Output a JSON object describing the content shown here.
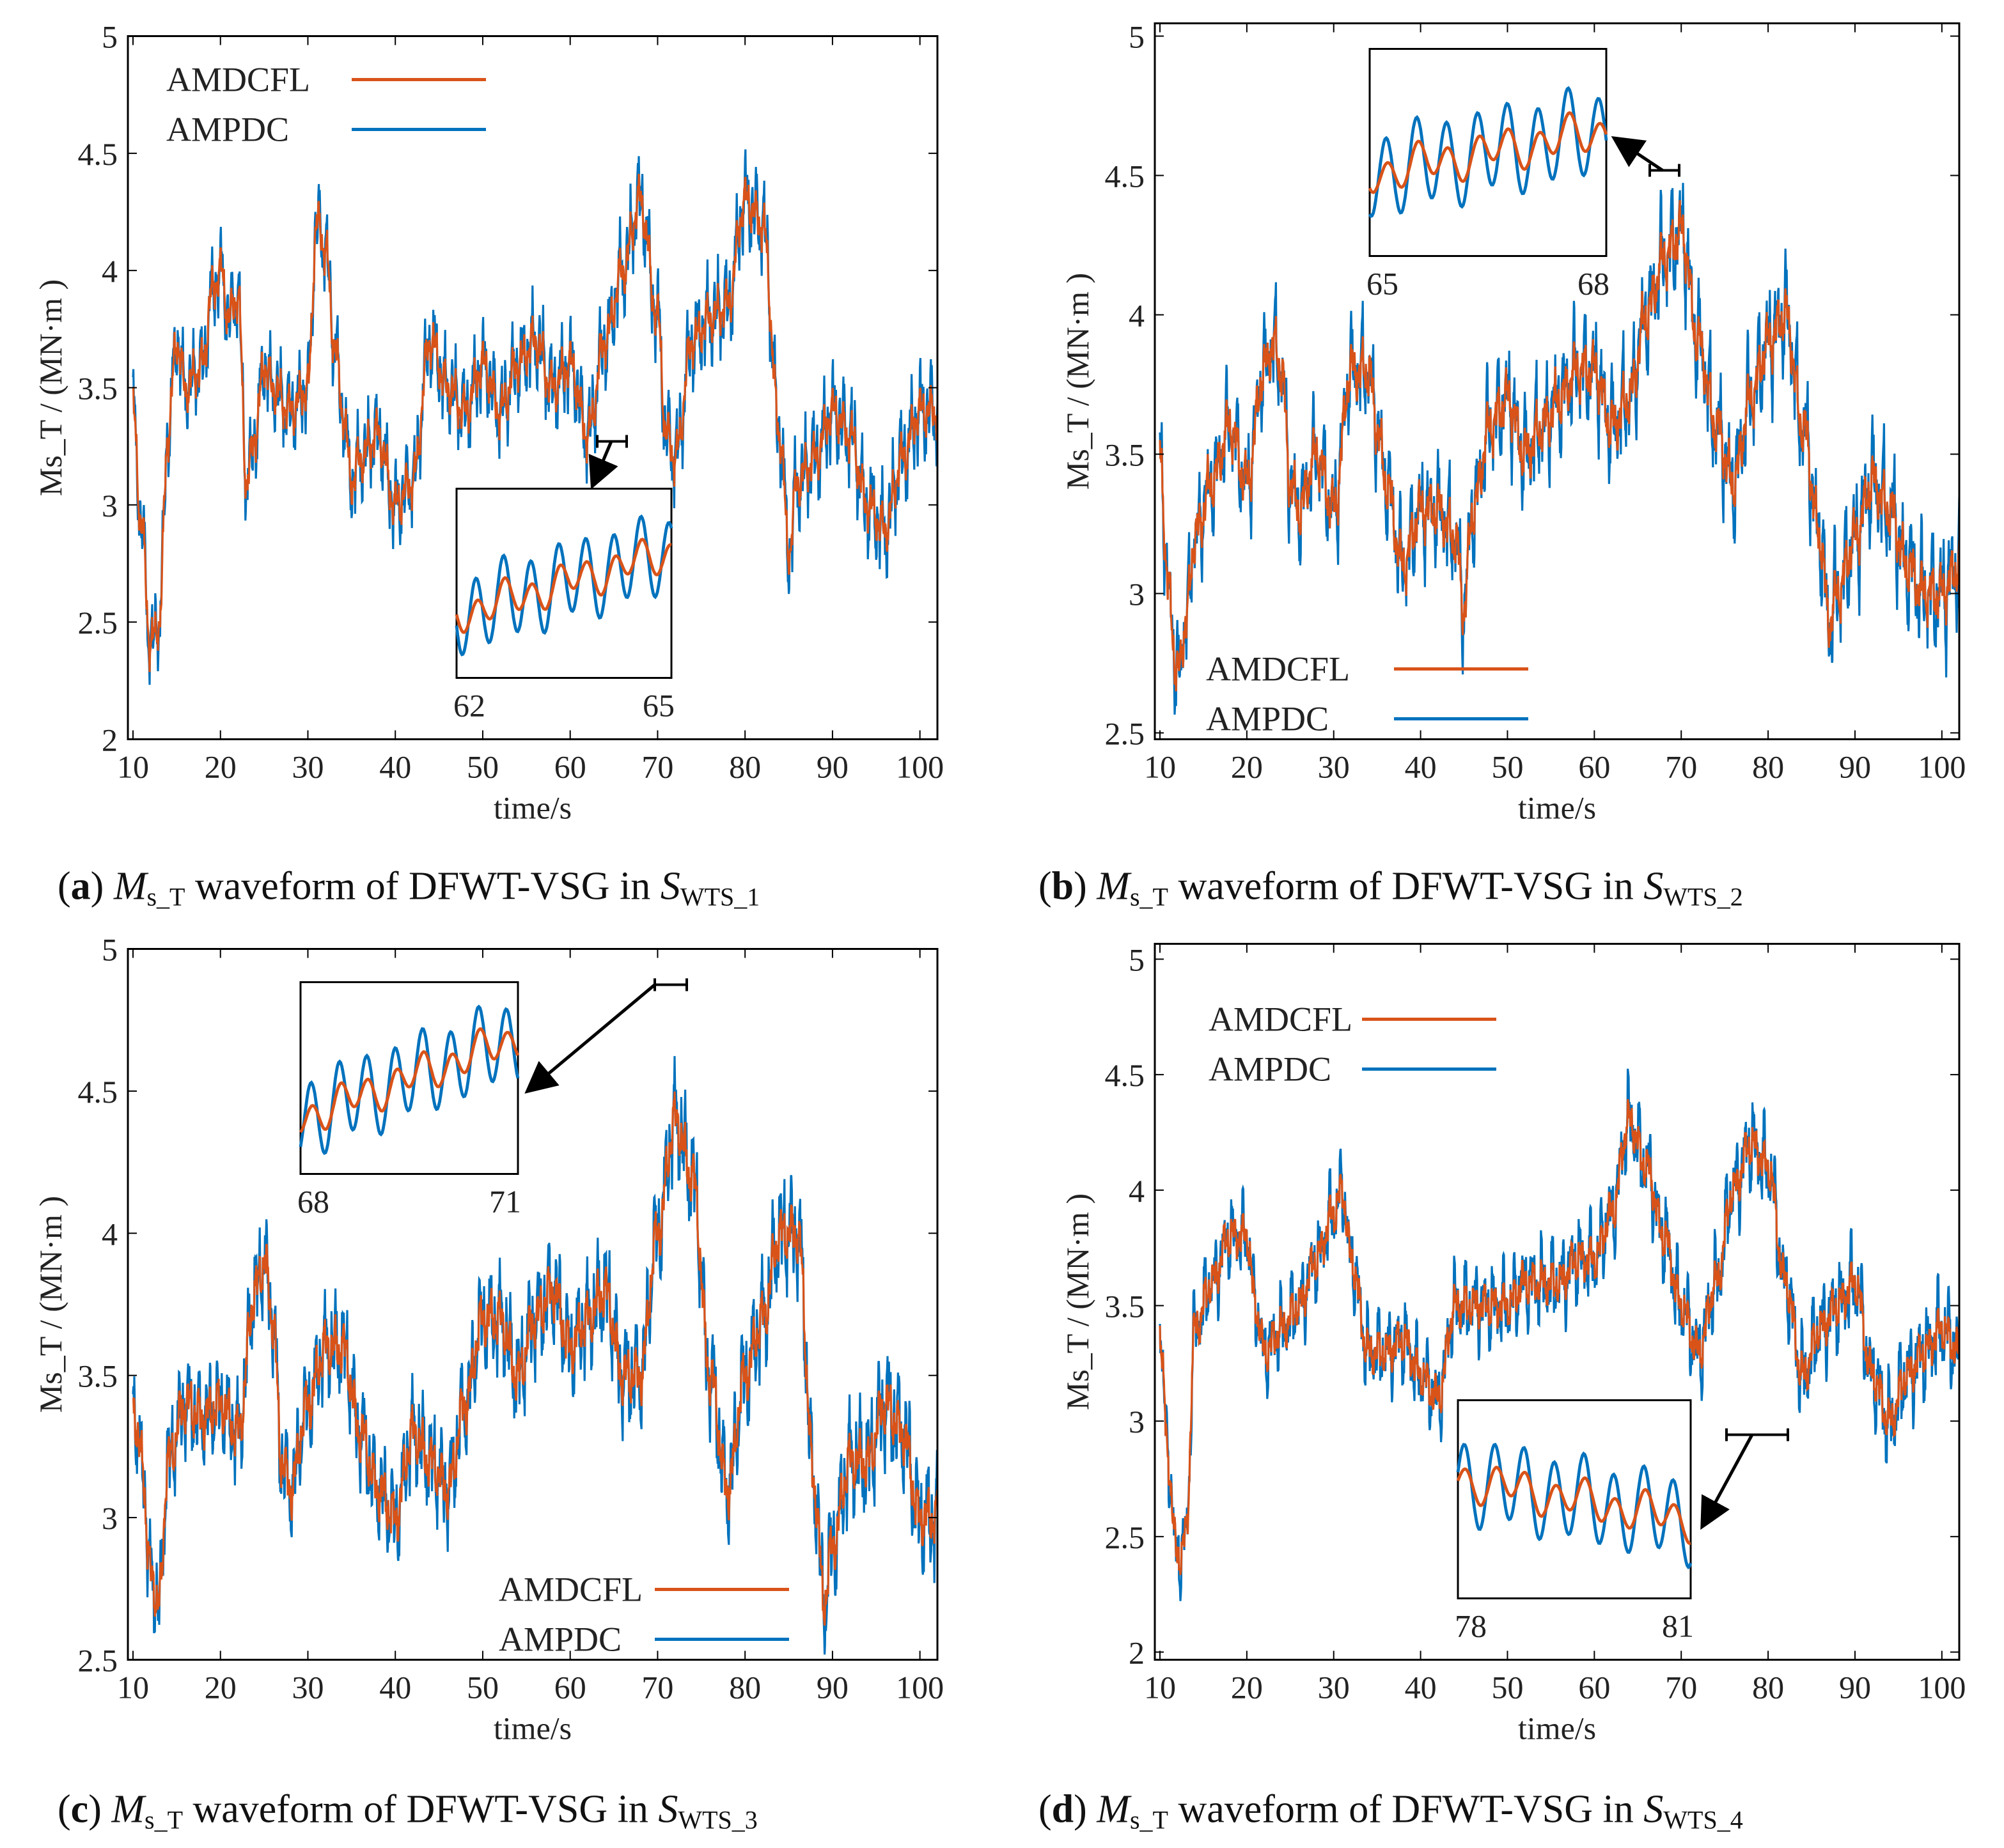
{
  "colors": {
    "amdcfl": "#d95319",
    "ampdc": "#0072bd",
    "axis": "#000000"
  },
  "chart_data": [
    {
      "type": "line",
      "panel": "a",
      "caption": {
        "tag": "a",
        "sym": "M",
        "sub": "s_T",
        "text": " waveform of DFWT-VSG in ",
        "sym2": "S",
        "sub2": "WTS_1"
      },
      "xlabel": "time/s",
      "ylabel": "Ms_T / (MN·m )",
      "xlim": [
        10,
        102
      ],
      "ylim": [
        2,
        5
      ],
      "xticks": [
        10,
        20,
        30,
        40,
        50,
        60,
        70,
        80,
        90,
        100
      ],
      "yticks": [
        2,
        2.5,
        3,
        3.5,
        4,
        4.5,
        5
      ],
      "ytick_labels": [
        "2",
        "2.5",
        "3",
        "3.5",
        "4",
        "4.5",
        "5"
      ],
      "legend": [
        "AMDCFL",
        "AMPDC"
      ],
      "legend_position": "top-left",
      "inset": {
        "xlim": [
          62,
          65
        ],
        "xtick_labels": [
          "62",
          "65"
        ]
      },
      "series_points": [
        [
          10,
          3.4
        ],
        [
          11,
          2.9
        ],
        [
          12,
          2.4
        ],
        [
          13,
          2.5
        ],
        [
          14,
          3.3
        ],
        [
          15,
          3.7
        ],
        [
          16,
          3.5
        ],
        [
          18,
          3.6
        ],
        [
          19,
          3.9
        ],
        [
          20,
          4.0
        ],
        [
          21,
          3.8
        ],
        [
          22,
          3.9
        ],
        [
          23,
          3.1
        ],
        [
          24,
          3.3
        ],
        [
          25,
          3.6
        ],
        [
          26,
          3.5
        ],
        [
          28,
          3.4
        ],
        [
          30,
          3.5
        ],
        [
          31,
          4.2
        ],
        [
          32,
          4.1
        ],
        [
          33,
          3.7
        ],
        [
          34,
          3.4
        ],
        [
          35,
          3.1
        ],
        [
          36,
          3.2
        ],
        [
          38,
          3.3
        ],
        [
          40,
          3.0
        ],
        [
          42,
          3.1
        ],
        [
          44,
          3.7
        ],
        [
          46,
          3.5
        ],
        [
          48,
          3.4
        ],
        [
          50,
          3.6
        ],
        [
          52,
          3.4
        ],
        [
          54,
          3.6
        ],
        [
          56,
          3.7
        ],
        [
          58,
          3.5
        ],
        [
          60,
          3.6
        ],
        [
          62,
          3.3
        ],
        [
          64,
          3.7
        ],
        [
          66,
          4.0
        ],
        [
          68,
          4.3
        ],
        [
          70,
          3.8
        ],
        [
          71,
          3.3
        ],
        [
          72,
          3.2
        ],
        [
          74,
          3.7
        ],
        [
          76,
          3.8
        ],
        [
          78,
          3.85
        ],
        [
          80,
          4.3
        ],
        [
          82,
          4.2
        ],
        [
          84,
          3.3
        ],
        [
          85,
          2.8
        ],
        [
          86,
          3.1
        ],
        [
          88,
          3.2
        ],
        [
          90,
          3.4
        ],
        [
          92,
          3.3
        ],
        [
          94,
          3.0
        ],
        [
          96,
          2.9
        ],
        [
          98,
          3.2
        ],
        [
          100,
          3.4
        ],
        [
          102,
          3.4
        ]
      ]
    },
    {
      "type": "line",
      "panel": "b",
      "caption": {
        "tag": "b",
        "sym": "M",
        "sub": "s_T",
        "text": " waveform of DFWT-VSG in ",
        "sym2": "S",
        "sub2": "WTS_2"
      },
      "xlabel": "time/s",
      "ylabel": "Ms_T / (MN·m )",
      "xlim": [
        10,
        102
      ],
      "ylim": [
        2.5,
        5
      ],
      "xticks": [
        10,
        20,
        30,
        40,
        50,
        60,
        70,
        80,
        90,
        100
      ],
      "yticks": [
        2.5,
        3,
        3.5,
        4,
        4.5,
        5
      ],
      "ytick_labels": [
        "2.5",
        "3",
        "3.5",
        "4",
        "4.5",
        "5"
      ],
      "legend": [
        "AMDCFL",
        "AMPDC"
      ],
      "legend_position": "bottom-left",
      "inset": {
        "xlim": [
          65,
          68
        ],
        "xtick_labels": [
          "65",
          "68"
        ]
      },
      "series_points": [
        [
          10,
          3.5
        ],
        [
          11,
          3.0
        ],
        [
          12,
          2.7
        ],
        [
          13,
          2.9
        ],
        [
          14,
          3.2
        ],
        [
          16,
          3.4
        ],
        [
          18,
          3.6
        ],
        [
          20,
          3.4
        ],
        [
          22,
          3.8
        ],
        [
          23,
          3.9
        ],
        [
          24,
          3.8
        ],
        [
          25,
          3.4
        ],
        [
          26,
          3.3
        ],
        [
          28,
          3.5
        ],
        [
          30,
          3.3
        ],
        [
          32,
          3.8
        ],
        [
          34,
          3.8
        ],
        [
          35,
          3.6
        ],
        [
          36,
          3.4
        ],
        [
          38,
          3.1
        ],
        [
          40,
          3.3
        ],
        [
          42,
          3.3
        ],
        [
          44,
          3.2
        ],
        [
          45,
          2.95
        ],
        [
          46,
          3.3
        ],
        [
          48,
          3.6
        ],
        [
          50,
          3.7
        ],
        [
          52,
          3.5
        ],
        [
          54,
          3.6
        ],
        [
          56,
          3.7
        ],
        [
          58,
          3.8
        ],
        [
          60,
          3.8
        ],
        [
          62,
          3.6
        ],
        [
          64,
          3.7
        ],
        [
          66,
          4.0
        ],
        [
          68,
          4.2
        ],
        [
          70,
          4.3
        ],
        [
          72,
          3.9
        ],
        [
          74,
          3.6
        ],
        [
          76,
          3.4
        ],
        [
          78,
          3.7
        ],
        [
          80,
          3.9
        ],
        [
          82,
          4.0
        ],
        [
          84,
          3.6
        ],
        [
          86,
          3.2
        ],
        [
          87,
          2.9
        ],
        [
          88,
          3.0
        ],
        [
          90,
          3.2
        ],
        [
          92,
          3.4
        ],
        [
          94,
          3.3
        ],
        [
          96,
          3.1
        ],
        [
          98,
          3.0
        ],
        [
          100,
          3.0
        ],
        [
          102,
          3.1
        ]
      ]
    },
    {
      "type": "line",
      "panel": "c",
      "caption": {
        "tag": "c",
        "sym": "M",
        "sub": "s_T",
        "text": " waveform of DFWT-VSG in ",
        "sym2": "S",
        "sub2": "WTS_3"
      },
      "xlabel": "time/s",
      "ylabel": "Ms_T / (MN·m )",
      "xlim": [
        10,
        102
      ],
      "ylim": [
        2.5,
        5
      ],
      "xticks": [
        10,
        20,
        30,
        40,
        50,
        60,
        70,
        80,
        90,
        100
      ],
      "yticks": [
        2.5,
        3,
        3.5,
        4,
        4.5,
        5
      ],
      "ytick_labels": [
        "2.5",
        "3",
        "3.5",
        "4",
        "4.5",
        "5"
      ],
      "legend": [
        "AMDCFL",
        "AMPDC"
      ],
      "legend_position": "bottom-right",
      "inset": {
        "xlim": [
          68,
          71
        ],
        "xtick_labels": [
          "68",
          "71"
        ]
      },
      "series_points": [
        [
          10,
          3.4
        ],
        [
          11,
          3.2
        ],
        [
          12,
          2.8
        ],
        [
          13,
          2.7
        ],
        [
          14,
          3.2
        ],
        [
          16,
          3.4
        ],
        [
          18,
          3.35
        ],
        [
          20,
          3.4
        ],
        [
          22,
          3.3
        ],
        [
          24,
          3.8
        ],
        [
          25,
          3.9
        ],
        [
          26,
          3.7
        ],
        [
          27,
          3.2
        ],
        [
          28,
          3.1
        ],
        [
          30,
          3.4
        ],
        [
          32,
          3.6
        ],
        [
          34,
          3.6
        ],
        [
          36,
          3.3
        ],
        [
          38,
          3.1
        ],
        [
          40,
          3.0
        ],
        [
          42,
          3.3
        ],
        [
          44,
          3.2
        ],
        [
          46,
          3.1
        ],
        [
          48,
          3.4
        ],
        [
          50,
          3.7
        ],
        [
          52,
          3.7
        ],
        [
          54,
          3.5
        ],
        [
          56,
          3.7
        ],
        [
          58,
          3.8
        ],
        [
          60,
          3.6
        ],
        [
          62,
          3.7
        ],
        [
          64,
          3.8
        ],
        [
          66,
          3.5
        ],
        [
          68,
          3.5
        ],
        [
          70,
          4.0
        ],
        [
          72,
          4.4
        ],
        [
          74,
          4.2
        ],
        [
          76,
          3.5
        ],
        [
          78,
          3.1
        ],
        [
          80,
          3.5
        ],
        [
          82,
          3.7
        ],
        [
          84,
          4.0
        ],
        [
          86,
          4.0
        ],
        [
          88,
          3.1
        ],
        [
          89,
          2.7
        ],
        [
          90,
          2.9
        ],
        [
          92,
          3.2
        ],
        [
          94,
          3.2
        ],
        [
          96,
          3.4
        ],
        [
          98,
          3.3
        ],
        [
          100,
          3.0
        ],
        [
          102,
          3.0
        ]
      ]
    },
    {
      "type": "line",
      "panel": "d",
      "caption": {
        "tag": "d",
        "sym": "M",
        "sub": "s_T",
        "text": " waveform of DFWT-VSG in ",
        "sym2": "S",
        "sub2": "WTS_4"
      },
      "xlabel": "time/s",
      "ylabel": "Ms_T / (MN·m )",
      "xlim": [
        10,
        102
      ],
      "ylim": [
        2,
        5
      ],
      "xticks": [
        10,
        20,
        30,
        40,
        50,
        60,
        70,
        80,
        90,
        100
      ],
      "yticks": [
        2,
        2.5,
        3,
        3.5,
        4,
        4.5,
        5
      ],
      "ytick_labels": [
        "2",
        "2.5",
        "3",
        "3.5",
        "4",
        "4.5",
        "5"
      ],
      "legend": [
        "AMDCFL",
        "AMPDC"
      ],
      "legend_position": "top-left",
      "inset": {
        "xlim": [
          78,
          81
        ],
        "xtick_labels": [
          "78",
          "81"
        ]
      },
      "series_points": [
        [
          10,
          3.4
        ],
        [
          11,
          2.8
        ],
        [
          12,
          2.4
        ],
        [
          13,
          2.5
        ],
        [
          14,
          3.4
        ],
        [
          16,
          3.6
        ],
        [
          18,
          3.8
        ],
        [
          20,
          3.8
        ],
        [
          21,
          3.5
        ],
        [
          22,
          3.3
        ],
        [
          24,
          3.4
        ],
        [
          26,
          3.5
        ],
        [
          28,
          3.7
        ],
        [
          30,
          3.9
        ],
        [
          31,
          4.0
        ],
        [
          32,
          3.7
        ],
        [
          34,
          3.3
        ],
        [
          36,
          3.3
        ],
        [
          38,
          3.35
        ],
        [
          40,
          3.2
        ],
        [
          42,
          3.1
        ],
        [
          44,
          3.5
        ],
        [
          46,
          3.5
        ],
        [
          48,
          3.5
        ],
        [
          50,
          3.5
        ],
        [
          52,
          3.6
        ],
        [
          54,
          3.6
        ],
        [
          56,
          3.6
        ],
        [
          58,
          3.7
        ],
        [
          60,
          3.7
        ],
        [
          62,
          3.9
        ],
        [
          64,
          4.3
        ],
        [
          66,
          4.1
        ],
        [
          68,
          3.8
        ],
        [
          70,
          3.5
        ],
        [
          72,
          3.3
        ],
        [
          74,
          3.6
        ],
        [
          76,
          4.0
        ],
        [
          78,
          4.2
        ],
        [
          80,
          4.1
        ],
        [
          82,
          3.6
        ],
        [
          84,
          3.2
        ],
        [
          86,
          3.4
        ],
        [
          88,
          3.5
        ],
        [
          90,
          3.6
        ],
        [
          92,
          3.2
        ],
        [
          94,
          3.0
        ],
        [
          96,
          3.2
        ],
        [
          98,
          3.3
        ],
        [
          100,
          3.4
        ],
        [
          102,
          3.3
        ]
      ]
    }
  ]
}
